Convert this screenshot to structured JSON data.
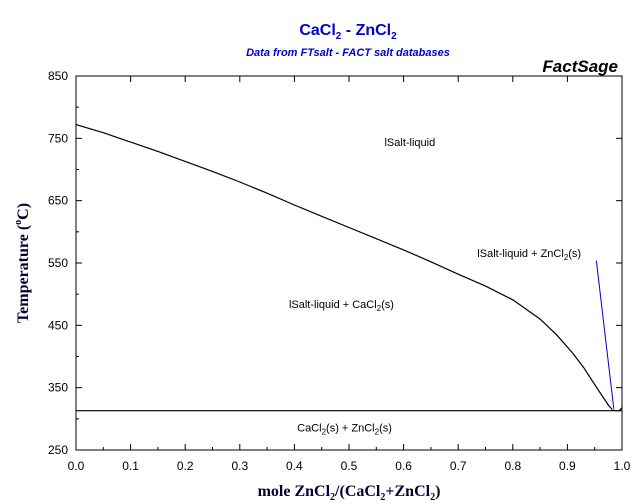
{
  "header": {
    "title": {
      "a": "CaCl",
      "a_sub": "2",
      "sep": " - ZnCl",
      "b_sub": "2"
    },
    "subtitle": "Data from FTsalt - FACT salt databases",
    "brand": "FactSage",
    "colors": {
      "title": "#0000cc",
      "annotation": "#0000cc",
      "curve": "#000000"
    }
  },
  "chart_data": {
    "type": "line",
    "xlim": [
      0.0,
      1.0
    ],
    "ylim": [
      250,
      850
    ],
    "x_ticks": [
      "0.0",
      "0.1",
      "0.2",
      "0.3",
      "0.4",
      "0.5",
      "0.6",
      "0.7",
      "0.8",
      "0.9",
      "1.0"
    ],
    "y_ticks": [
      "250",
      "350",
      "450",
      "550",
      "650",
      "750",
      "850"
    ],
    "xlabel": {
      "a": "mole ZnCl",
      "a_sub": "2",
      "b": "/(CaCl",
      "b_sub": "2",
      "c": "+ZnCl",
      "c_sub": "2",
      "d": ")"
    },
    "ylabel": {
      "a": "Temperature (",
      "deg": "o",
      "b": "C)"
    },
    "series": [
      {
        "id": "liquidus-cacl2",
        "x": [
          0.0,
          0.05,
          0.1,
          0.15,
          0.2,
          0.25,
          0.3,
          0.35,
          0.4,
          0.45,
          0.5,
          0.55,
          0.6,
          0.65,
          0.7,
          0.75,
          0.8,
          0.85,
          0.88,
          0.91,
          0.93,
          0.95,
          0.965,
          0.975,
          0.982
        ],
        "y": [
          772,
          759,
          744,
          729,
          713,
          697,
          680,
          662,
          643,
          625,
          607,
          589,
          571,
          552,
          532,
          513,
          491,
          460,
          435,
          405,
          382,
          355,
          335,
          322,
          315
        ]
      },
      {
        "id": "liquidus-zncl2",
        "x": [
          0.9825,
          0.99,
          0.995,
          1.0
        ],
        "y": [
          314,
          313,
          313,
          318
        ]
      },
      {
        "id": "eutectic",
        "x": [
          0.0,
          1.0
        ],
        "y": [
          313,
          313
        ]
      }
    ],
    "regions": [
      {
        "id": "salt-liquid",
        "text": "lSalt-liquid",
        "x": 0.565,
        "y": 738
      },
      {
        "id": "liq-cacl2",
        "text": "lSalt-liquid + CaCl",
        "sub": "2",
        "tail": "(s)",
        "x": 0.39,
        "y": 478
      },
      {
        "id": "cacl2-zncl2",
        "text": "CaCl",
        "sub": "2",
        "mid": "(s) + ZnCl",
        "sub2": "2",
        "tail": "(s)",
        "x": 0.405,
        "y": 280
      },
      {
        "id": "liq-zncl2",
        "text": "lSalt-liquid + ZnCl",
        "sub": "2",
        "tail": "(s)",
        "x": 0.735,
        "y": 560
      }
    ],
    "leader": {
      "x": [
        0.953,
        0.985
      ],
      "y": [
        554,
        316
      ]
    }
  }
}
